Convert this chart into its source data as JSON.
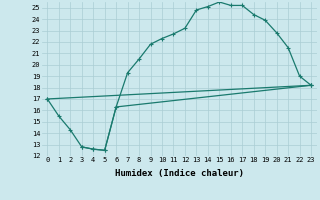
{
  "xlabel": "Humidex (Indice chaleur)",
  "bg_color": "#cce8ed",
  "grid_color": "#aacdd4",
  "line_color": "#1a7a6e",
  "xlim": [
    -0.5,
    23.5
  ],
  "ylim": [
    12,
    25.5
  ],
  "line1_x": [
    0,
    1,
    2,
    3,
    4,
    5,
    6,
    7,
    8,
    9,
    10,
    11,
    12,
    13,
    14,
    15,
    16,
    17,
    18,
    19,
    20,
    21,
    22,
    23
  ],
  "line1_y": [
    17.0,
    15.5,
    14.3,
    12.8,
    12.6,
    12.5,
    16.3,
    19.3,
    20.5,
    21.8,
    22.3,
    22.7,
    23.2,
    24.8,
    25.1,
    25.5,
    25.2,
    25.2,
    24.4,
    23.9,
    22.8,
    21.5,
    19.0,
    18.2
  ],
  "line2_x": [
    3,
    4,
    5,
    6,
    23
  ],
  "line2_y": [
    12.8,
    12.6,
    12.5,
    16.3,
    18.2
  ],
  "line3_x": [
    0,
    23
  ],
  "line3_y": [
    17.0,
    18.2
  ],
  "xtick_vals": [
    0,
    1,
    2,
    3,
    4,
    5,
    6,
    7,
    8,
    9,
    10,
    11,
    12,
    13,
    14,
    15,
    16,
    17,
    18,
    19,
    20,
    21,
    22,
    23
  ],
  "xtick_labels": [
    "0",
    "1",
    "2",
    "3",
    "4",
    "5",
    "6",
    "7",
    "8",
    "9",
    "10",
    "11",
    "12",
    "13",
    "14",
    "15",
    "16",
    "17",
    "18",
    "19",
    "20",
    "21",
    "22",
    "23"
  ],
  "ytick_vals": [
    12,
    13,
    14,
    15,
    16,
    17,
    18,
    19,
    20,
    21,
    22,
    23,
    24,
    25
  ],
  "ytick_labels": [
    "12",
    "13",
    "14",
    "15",
    "16",
    "17",
    "18",
    "19",
    "20",
    "21",
    "22",
    "23",
    "24",
    "25"
  ],
  "linewidth": 0.9,
  "marker": "+",
  "markersize": 3.5,
  "markeredgewidth": 0.8,
  "tick_fontsize": 5.0,
  "xlabel_fontsize": 6.5
}
